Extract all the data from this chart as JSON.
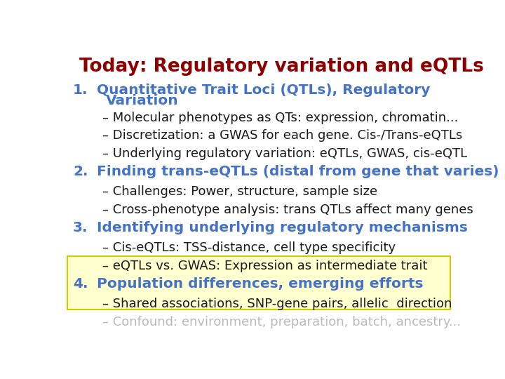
{
  "title": "Today: Regulatory variation and eQTLs",
  "title_color": "#8B0000",
  "background_color": "#FFFFFF",
  "items": [
    {
      "number": "1.",
      "text": "Quantitative Trait Loci (QTLs), Regulatory",
      "text2": "Variation",
      "color": "#4472C4",
      "type": "numbered"
    },
    {
      "text": "– Molecular phenotypes as QTs: expression, chromatin...",
      "color": "#1a1a1a",
      "type": "bullet"
    },
    {
      "text": "– Discretization: a GWAS for each gene. Cis-/Trans-eQTLs",
      "color": "#1a1a1a",
      "type": "bullet"
    },
    {
      "text": "– Underlying regulatory variation: eQTLs, GWAS, cis-eQTL",
      "color": "#1a1a1a",
      "type": "bullet"
    },
    {
      "number": "2.",
      "text": "Finding trans-eQTLs (distal from gene that varies)",
      "color": "#4472C4",
      "type": "numbered"
    },
    {
      "text": "– Challenges: Power, structure, sample size",
      "color": "#1a1a1a",
      "type": "bullet"
    },
    {
      "text": "– Cross-phenotype analysis: trans QTLs affect many genes",
      "color": "#1a1a1a",
      "type": "bullet"
    },
    {
      "number": "3.",
      "text": "Identifying underlying regulatory mechanisms",
      "color": "#4472C4",
      "type": "numbered"
    },
    {
      "text": "– Cis-eQTLs: TSS-distance, cell type specificity",
      "color": "#1a1a1a",
      "type": "bullet"
    },
    {
      "text": "– eQTLs vs. GWAS: Expression as intermediate trait",
      "color": "#1a1a1a",
      "type": "bullet",
      "highlighted": true
    },
    {
      "number": "4.",
      "text": "Population differences, emerging efforts",
      "color": "#4472C4",
      "type": "numbered",
      "highlighted": true
    },
    {
      "text": "– Shared associations, SNP-gene pairs, allelic  direction",
      "color": "#1a1a1a",
      "type": "bullet",
      "highlighted": true
    },
    {
      "text": "– Confound: environment, preparation, batch, ancestry...",
      "color": "#1a1a1a",
      "type": "bullet",
      "partial": true
    }
  ],
  "highlight_box_color": "#FFFFD0",
  "highlight_box_edge_color": "#CCCC00",
  "title_fontsize": 19,
  "numbered_fontsize": 14.5,
  "bullet_fontsize": 13
}
